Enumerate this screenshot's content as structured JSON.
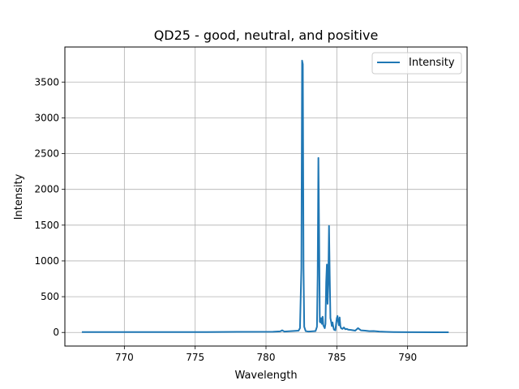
{
  "chart_data": {
    "type": "line",
    "title": "QD25 - good, neutral, and positive",
    "xlabel": "Wavelength",
    "ylabel": "Intensity",
    "xlim": [
      765.8,
      794.2
    ],
    "ylim": [
      -190,
      3990
    ],
    "xticks": [
      770,
      775,
      780,
      785,
      790
    ],
    "yticks": [
      0,
      500,
      1000,
      1500,
      2000,
      2500,
      3000,
      3500
    ],
    "grid": true,
    "legend": {
      "position": "top-right",
      "entries": [
        "Intensity"
      ]
    },
    "series": [
      {
        "name": "Intensity",
        "color": "#1f77b4",
        "x": [
          767.0,
          770.0,
          775.0,
          778.0,
          780.5,
          781.0,
          781.15,
          781.3,
          782.3,
          782.4,
          782.5,
          782.55,
          782.6,
          782.65,
          782.7,
          782.8,
          783.0,
          783.5,
          783.6,
          783.65,
          783.7,
          783.75,
          783.8,
          783.85,
          783.9,
          783.95,
          784.0,
          784.05,
          784.1,
          784.15,
          784.2,
          784.25,
          784.3,
          784.35,
          784.4,
          784.45,
          784.5,
          784.55,
          784.6,
          784.65,
          784.7,
          784.75,
          784.8,
          784.9,
          785.0,
          785.05,
          785.1,
          785.15,
          785.2,
          785.25,
          785.3,
          785.4,
          785.5,
          785.6,
          785.7,
          785.8,
          786.0,
          786.3,
          786.5,
          786.7,
          787.0,
          787.3,
          787.6,
          788.0,
          788.5,
          789.0,
          790.0,
          792.0,
          792.9
        ],
        "values": [
          5,
          6,
          5,
          8,
          10,
          15,
          30,
          12,
          25,
          60,
          900,
          3800,
          3750,
          900,
          80,
          20,
          12,
          20,
          80,
          800,
          2440,
          1400,
          150,
          140,
          200,
          120,
          220,
          100,
          80,
          60,
          120,
          700,
          950,
          400,
          700,
          1490,
          800,
          200,
          150,
          90,
          140,
          80,
          40,
          30,
          200,
          230,
          150,
          100,
          210,
          90,
          60,
          50,
          70,
          45,
          50,
          40,
          35,
          25,
          60,
          30,
          25,
          18,
          20,
          12,
          8,
          6,
          4,
          3,
          2
        ]
      }
    ]
  }
}
